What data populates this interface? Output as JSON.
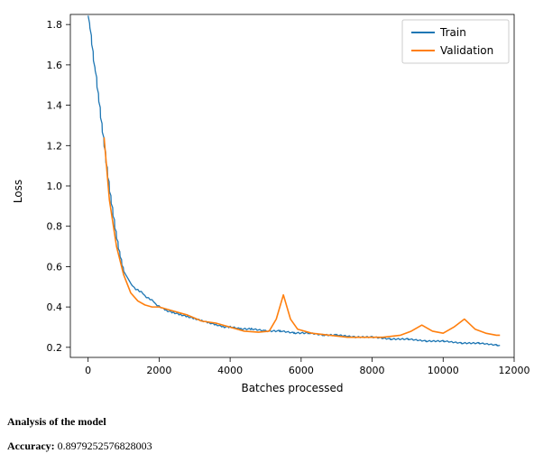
{
  "chart": {
    "type": "line",
    "background_color": "#ffffff",
    "plot_border_color": "#000000",
    "plot_border_width": 0.8,
    "xlabel": "Batches processed",
    "ylabel": "Loss",
    "label_fontsize": 12,
    "label_color": "#000000",
    "tick_fontsize": 11,
    "tick_color": "#000000",
    "xlim": [
      -500,
      12000
    ],
    "ylim": [
      0.15,
      1.85
    ],
    "xticks": [
      0,
      2000,
      4000,
      6000,
      8000,
      10000,
      12000
    ],
    "yticks": [
      0.2,
      0.4,
      0.6,
      0.8,
      1.0,
      1.2,
      1.4,
      1.6,
      1.8
    ],
    "grid": false,
    "legend": {
      "position": "upper right",
      "border_color": "#cccccc",
      "background": "#ffffff",
      "fontsize": 12,
      "items": [
        {
          "label": "Train",
          "color": "#1f77b4"
        },
        {
          "label": "Validation",
          "color": "#ff7f0e"
        }
      ]
    },
    "series": [
      {
        "name": "Train",
        "color": "#1f77b4",
        "line_width": 1.3,
        "style_note": "noisy oscillation sawtooth every ~100-150 batches",
        "noise_amplitude": 0.05,
        "data_approx": [
          [
            0,
            1.82
          ],
          [
            50,
            1.76
          ],
          [
            100,
            1.68
          ],
          [
            150,
            1.6
          ],
          [
            200,
            1.55
          ],
          [
            250,
            1.47
          ],
          [
            300,
            1.4
          ],
          [
            350,
            1.32
          ],
          [
            400,
            1.25
          ],
          [
            450,
            1.18
          ],
          [
            500,
            1.1
          ],
          [
            550,
            1.03
          ],
          [
            600,
            0.96
          ],
          [
            650,
            0.9
          ],
          [
            700,
            0.84
          ],
          [
            750,
            0.78
          ],
          [
            800,
            0.73
          ],
          [
            850,
            0.68
          ],
          [
            900,
            0.64
          ],
          [
            950,
            0.6
          ],
          [
            1000,
            0.57
          ],
          [
            1100,
            0.54
          ],
          [
            1200,
            0.51
          ],
          [
            1300,
            0.49
          ],
          [
            1400,
            0.48
          ],
          [
            1500,
            0.47
          ],
          [
            1600,
            0.45
          ],
          [
            1700,
            0.44
          ],
          [
            1800,
            0.43
          ],
          [
            1900,
            0.41
          ],
          [
            2000,
            0.4
          ],
          [
            2200,
            0.38
          ],
          [
            2400,
            0.37
          ],
          [
            2600,
            0.36
          ],
          [
            2800,
            0.35
          ],
          [
            3000,
            0.34
          ],
          [
            3200,
            0.33
          ],
          [
            3400,
            0.32
          ],
          [
            3600,
            0.31
          ],
          [
            3800,
            0.3
          ],
          [
            4000,
            0.3
          ],
          [
            4300,
            0.29
          ],
          [
            4600,
            0.29
          ],
          [
            5000,
            0.28
          ],
          [
            5400,
            0.28
          ],
          [
            5800,
            0.27
          ],
          [
            6200,
            0.27
          ],
          [
            6600,
            0.26
          ],
          [
            7000,
            0.26
          ],
          [
            7500,
            0.25
          ],
          [
            8000,
            0.25
          ],
          [
            8500,
            0.24
          ],
          [
            9000,
            0.24
          ],
          [
            9500,
            0.23
          ],
          [
            10000,
            0.23
          ],
          [
            10500,
            0.22
          ],
          [
            11000,
            0.22
          ],
          [
            11500,
            0.21
          ],
          [
            11600,
            0.21
          ]
        ]
      },
      {
        "name": "Validation",
        "color": "#ff7f0e",
        "line_width": 1.6,
        "data": [
          [
            450,
            1.24
          ],
          [
            600,
            0.93
          ],
          [
            800,
            0.7
          ],
          [
            1000,
            0.56
          ],
          [
            1200,
            0.47
          ],
          [
            1400,
            0.43
          ],
          [
            1600,
            0.41
          ],
          [
            1800,
            0.4
          ],
          [
            2000,
            0.4
          ],
          [
            2400,
            0.38
          ],
          [
            2800,
            0.36
          ],
          [
            3200,
            0.33
          ],
          [
            3600,
            0.32
          ],
          [
            4000,
            0.3
          ],
          [
            4400,
            0.28
          ],
          [
            4800,
            0.275
          ],
          [
            5100,
            0.28
          ],
          [
            5300,
            0.34
          ],
          [
            5500,
            0.46
          ],
          [
            5700,
            0.34
          ],
          [
            5900,
            0.29
          ],
          [
            6300,
            0.27
          ],
          [
            6800,
            0.26
          ],
          [
            7300,
            0.25
          ],
          [
            7800,
            0.25
          ],
          [
            8300,
            0.25
          ],
          [
            8800,
            0.26
          ],
          [
            9100,
            0.28
          ],
          [
            9400,
            0.31
          ],
          [
            9700,
            0.28
          ],
          [
            10000,
            0.27
          ],
          [
            10300,
            0.3
          ],
          [
            10600,
            0.34
          ],
          [
            10900,
            0.29
          ],
          [
            11200,
            0.27
          ],
          [
            11500,
            0.26
          ],
          [
            11600,
            0.26
          ]
        ]
      }
    ]
  },
  "analysis": {
    "heading": "Analysis of the model",
    "accuracy_label": "Accuracy:",
    "accuracy_value": "0.8979252576828003"
  }
}
